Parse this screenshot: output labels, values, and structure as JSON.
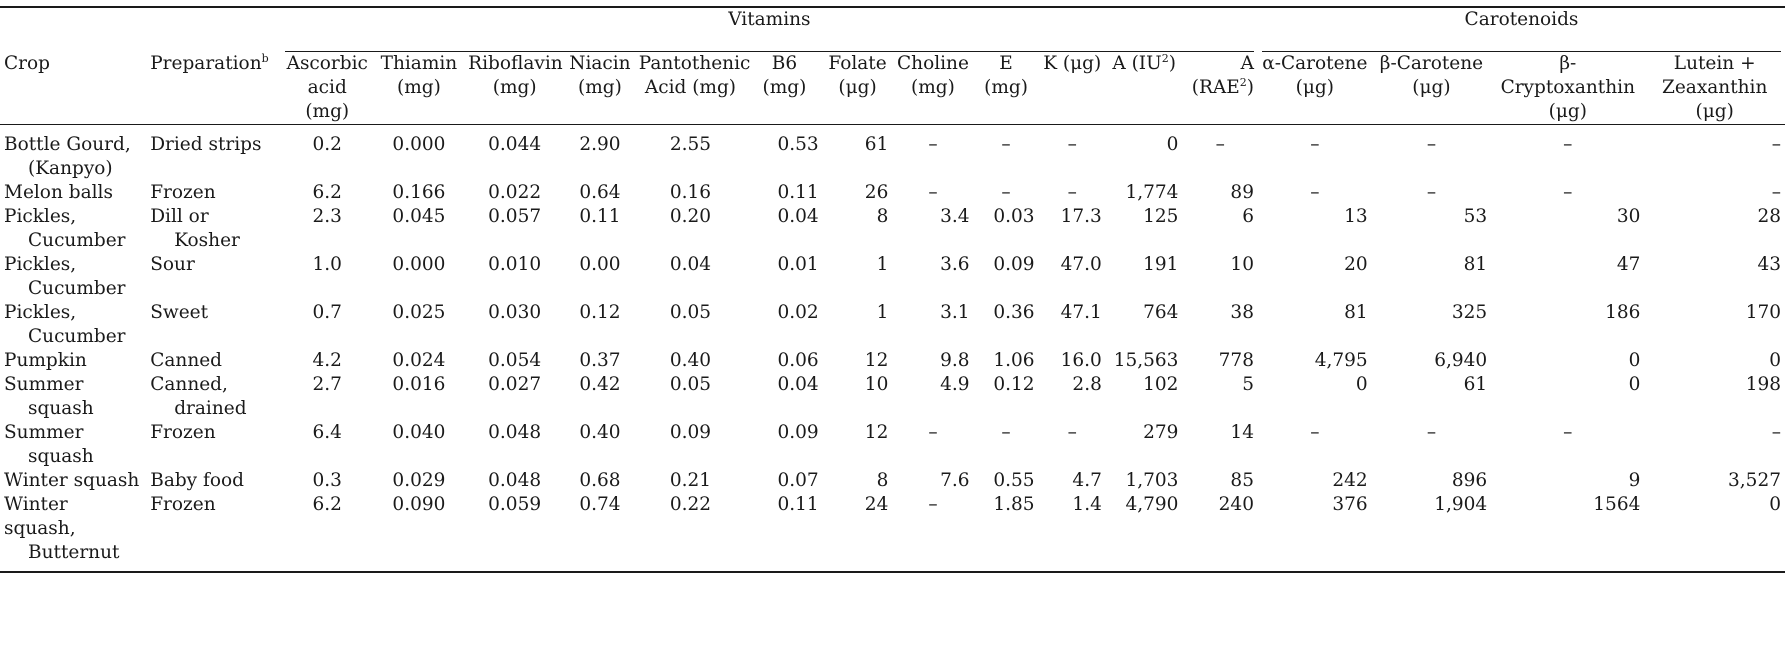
{
  "groups": {
    "vitamins": "Vitamins",
    "carotenoids": "Carotenoids"
  },
  "columns": [
    {
      "key": "crop",
      "label": "Crop"
    },
    {
      "key": "prep",
      "label": "Preparation",
      "sup": "b"
    },
    {
      "key": "ascorbic",
      "line1": "Ascorbic",
      "line2": "acid (mg)"
    },
    {
      "key": "thiamin",
      "line1": "Thiamin",
      "line2": "(mg)"
    },
    {
      "key": "riboflavin",
      "line1": "Riboflavin",
      "line2": "(mg)"
    },
    {
      "key": "niacin",
      "line1": "Niacin",
      "line2": "(mg)"
    },
    {
      "key": "pantothenic",
      "line1": "Pantothenic",
      "line2": "Acid (mg)"
    },
    {
      "key": "b6",
      "label": "B6 (mg)"
    },
    {
      "key": "folate",
      "line1": "Folate",
      "line2": "(μg)"
    },
    {
      "key": "choline",
      "line1": "Choline",
      "line2": "(mg)"
    },
    {
      "key": "e",
      "label": "E (mg)"
    },
    {
      "key": "k",
      "label": "K (μg)"
    },
    {
      "key": "a_iu",
      "pre": "A (IU",
      "sup": "2",
      "post": ")"
    },
    {
      "key": "a_rae",
      "line1": "A",
      "pre2": "(RAE",
      "sup": "2",
      "post2": ")"
    },
    {
      "key": "alpha",
      "line1": "α-Carotene",
      "line2": "(μg)"
    },
    {
      "key": "beta",
      "line1": "β-Carotene",
      "line2": "(μg)"
    },
    {
      "key": "crypto",
      "line1": "β-Cryptoxanthin",
      "line2": "(μg)"
    },
    {
      "key": "lutein",
      "line0": "Lutein +",
      "line1": "Zeaxanthin",
      "line2": "(μg)"
    }
  ],
  "rows": [
    {
      "crop": [
        "Bottle Gourd,",
        "(Kanpyo)"
      ],
      "prep": [
        "Dried strips"
      ],
      "values": [
        "0.2",
        "0.000",
        "0.044",
        "2.90",
        "2.55",
        "0.53",
        "61",
        "–",
        "–",
        "–",
        "0",
        "–",
        "–",
        "–",
        "–",
        "–"
      ]
    },
    {
      "crop": [
        "Melon balls"
      ],
      "prep": [
        "Frozen"
      ],
      "values": [
        "6.2",
        "0.166",
        "0.022",
        "0.64",
        "0.16",
        "0.11",
        "26",
        "–",
        "–",
        "–",
        "1,774",
        "89",
        "–",
        "–",
        "–",
        "–"
      ]
    },
    {
      "crop": [
        "Pickles,",
        "Cucumber"
      ],
      "prep": [
        "Dill or",
        "Kosher"
      ],
      "values": [
        "2.3",
        "0.045",
        "0.057",
        "0.11",
        "0.20",
        "0.04",
        "8",
        "3.4",
        "0.03",
        "17.3",
        "125",
        "6",
        "13",
        "53",
        "30",
        "28"
      ]
    },
    {
      "crop": [
        "Pickles,",
        "Cucumber"
      ],
      "prep": [
        "Sour"
      ],
      "values": [
        "1.0",
        "0.000",
        "0.010",
        "0.00",
        "0.04",
        "0.01",
        "1",
        "3.6",
        "0.09",
        "47.0",
        "191",
        "10",
        "20",
        "81",
        "47",
        "43"
      ]
    },
    {
      "crop": [
        "Pickles,",
        "Cucumber"
      ],
      "prep": [
        "Sweet"
      ],
      "values": [
        "0.7",
        "0.025",
        "0.030",
        "0.12",
        "0.05",
        "0.02",
        "1",
        "3.1",
        "0.36",
        "47.1",
        "764",
        "38",
        "81",
        "325",
        "186",
        "170"
      ]
    },
    {
      "crop": [
        "Pumpkin"
      ],
      "prep": [
        "Canned"
      ],
      "values": [
        "4.2",
        "0.024",
        "0.054",
        "0.37",
        "0.40",
        "0.06",
        "12",
        "9.8",
        "1.06",
        "16.0",
        "15,563",
        "778",
        "4,795",
        "6,940",
        "0",
        "0"
      ]
    },
    {
      "crop": [
        "Summer",
        "squash"
      ],
      "prep": [
        "Canned,",
        "drained"
      ],
      "values": [
        "2.7",
        "0.016",
        "0.027",
        "0.42",
        "0.05",
        "0.04",
        "10",
        "4.9",
        "0.12",
        "2.8",
        "102",
        "5",
        "0",
        "61",
        "0",
        "198"
      ]
    },
    {
      "crop": [
        "Summer",
        "squash"
      ],
      "prep": [
        "Frozen"
      ],
      "values": [
        "6.4",
        "0.040",
        "0.048",
        "0.40",
        "0.09",
        "0.09",
        "12",
        "–",
        "–",
        "–",
        "279",
        "14",
        "–",
        "–",
        "–",
        "–"
      ]
    },
    {
      "crop": [
        "Winter squash"
      ],
      "prep": [
        "Baby food"
      ],
      "values": [
        "0.3",
        "0.029",
        "0.048",
        "0.68",
        "0.21",
        "0.07",
        "8",
        "7.6",
        "0.55",
        "4.7",
        "1,703",
        "85",
        "242",
        "896",
        "9",
        "3,527"
      ]
    },
    {
      "crop": [
        "Winter squash,",
        "Butternut"
      ],
      "prep": [
        "Frozen"
      ],
      "values": [
        "6.2",
        "0.090",
        "0.059",
        "0.74",
        "0.22",
        "0.11",
        "24",
        "–",
        "1.85",
        "1.4",
        "4,790",
        "240",
        "376",
        "1,904",
        "1564",
        "0"
      ]
    }
  ]
}
